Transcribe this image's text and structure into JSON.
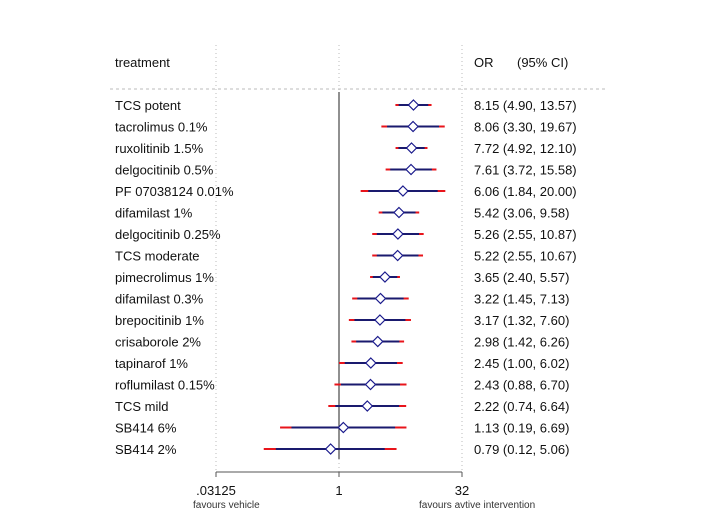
{
  "chart_data": {
    "type": "forest",
    "scale": "log2",
    "header": {
      "treatment": "treatment",
      "or": "OR",
      "ci": "(95% CI)"
    },
    "xticks": [
      {
        "value": 0.03125,
        "label": ".03125"
      },
      {
        "value": 1,
        "label": "1"
      },
      {
        "value": 32,
        "label": "32"
      }
    ],
    "xlim": [
      0.03125,
      32
    ],
    "reference_value": 1,
    "footnotes": {
      "left": "favours vehicle",
      "right": "favours avtive intervention"
    },
    "rows": [
      {
        "treatment": "TCS potent",
        "or": 8.15,
        "lo": 4.9,
        "hi": 13.57,
        "text": "8.15 (4.90, 13.57)"
      },
      {
        "treatment": "tacrolimus 0.1%",
        "or": 8.06,
        "lo": 3.3,
        "hi": 19.67,
        "text": "8.06 (3.30, 19.67)"
      },
      {
        "treatment": "ruxolitinib 1.5%",
        "or": 7.72,
        "lo": 4.92,
        "hi": 12.1,
        "text": "7.72 (4.92, 12.10)"
      },
      {
        "treatment": "delgocitinib 0.5%",
        "or": 7.61,
        "lo": 3.72,
        "hi": 15.58,
        "text": "7.61 (3.72, 15.58)"
      },
      {
        "treatment": "PF 07038124 0.01%",
        "or": 6.06,
        "lo": 1.84,
        "hi": 20.0,
        "text": "6.06 (1.84, 20.00)"
      },
      {
        "treatment": "difamilast 1%",
        "or": 5.42,
        "lo": 3.06,
        "hi": 9.58,
        "text": "5.42 (3.06, 9.58)"
      },
      {
        "treatment": "delgocitinib 0.25%",
        "or": 5.26,
        "lo": 2.55,
        "hi": 10.87,
        "text": "5.26 (2.55, 10.87)"
      },
      {
        "treatment": "TCS moderate",
        "or": 5.22,
        "lo": 2.55,
        "hi": 10.67,
        "text": "5.22 (2.55, 10.67)"
      },
      {
        "treatment": "pimecrolimus 1%",
        "or": 3.65,
        "lo": 2.4,
        "hi": 5.57,
        "text": "3.65 (2.40, 5.57)"
      },
      {
        "treatment": "difamilast 0.3%",
        "or": 3.22,
        "lo": 1.45,
        "hi": 7.13,
        "text": "3.22 (1.45, 7.13)"
      },
      {
        "treatment": "brepocitinib 1%",
        "or": 3.17,
        "lo": 1.32,
        "hi": 7.6,
        "text": "3.17 (1.32, 7.60)"
      },
      {
        "treatment": "crisaborole 2%",
        "or": 2.98,
        "lo": 1.42,
        "hi": 6.26,
        "text": "2.98 (1.42, 6.26)"
      },
      {
        "treatment": "tapinarof 1%",
        "or": 2.45,
        "lo": 1.0,
        "hi": 6.02,
        "text": "2.45 (1.00, 6.02)"
      },
      {
        "treatment": "roflumilast 0.15%",
        "or": 2.43,
        "lo": 0.88,
        "hi": 6.7,
        "text": "2.43 (0.88, 6.70)"
      },
      {
        "treatment": "TCS mild",
        "or": 2.22,
        "lo": 0.74,
        "hi": 6.64,
        "text": "2.22 (0.74, 6.64)"
      },
      {
        "treatment": "SB414 6%",
        "or": 1.13,
        "lo": 0.19,
        "hi": 6.69,
        "text": "1.13 (0.19, 6.69)"
      },
      {
        "treatment": "SB414 2%",
        "or": 0.79,
        "lo": 0.12,
        "hi": 5.06,
        "text": "0.79 (0.12, 5.06)"
      }
    ],
    "colors": {
      "ci_line": "#1a1a6e",
      "ci_center": "#e8141b",
      "marker": "#1a1a8c",
      "ref_line": "#222222",
      "dotted": "#bbbbbb",
      "axis": "#555555"
    }
  }
}
